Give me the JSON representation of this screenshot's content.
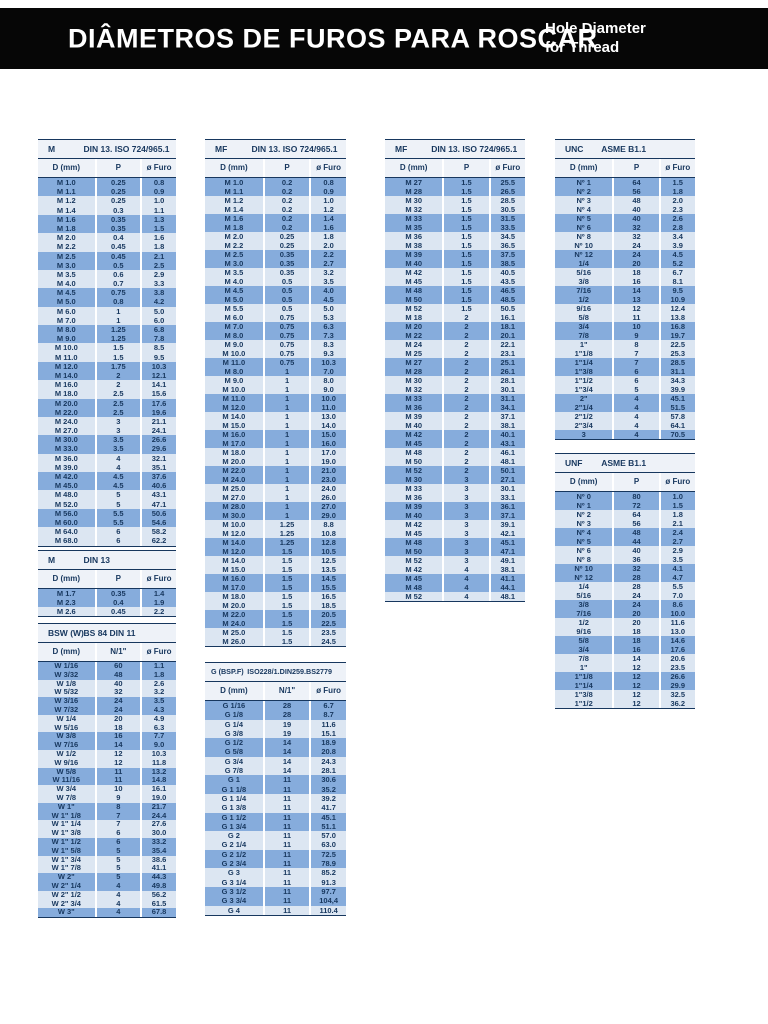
{
  "header": {
    "title": "DIÂMETROS DE FUROS PARA ROSCAR",
    "subtitle_line1": "Hole Diameter",
    "subtitle_line2": "for Thread"
  },
  "colors": {
    "banner_bg": "#060606",
    "banner_text": "#ffffff",
    "text_navy": "#17375e",
    "band_medium": "#86acdc",
    "band_light": "#dce6f2",
    "header_bg": "#eef2f8"
  },
  "tables": [
    {
      "id": "m-coarse",
      "title_left": "M",
      "title_right": "DIN 13. ISO 724/965.1",
      "columns": [
        "D (mm)",
        "P",
        "ø Furo"
      ],
      "rows": [
        [
          "M 1.0",
          "0.25",
          "0.8"
        ],
        [
          "M 1.1",
          "0.25",
          "0.9"
        ],
        [
          "M 1.2",
          "0.25",
          "1.0"
        ],
        [
          "M 1.4",
          "0.3",
          "1.1"
        ],
        [
          "M 1.6",
          "0.35",
          "1.3"
        ],
        [
          "M 1.8",
          "0.35",
          "1.5"
        ],
        [
          "M 2.0",
          "0.4",
          "1.6"
        ],
        [
          "M 2.2",
          "0.45",
          "1.8"
        ],
        [
          "M 2.5",
          "0.45",
          "2.1"
        ],
        [
          "M 3.0",
          "0.5",
          "2.5"
        ],
        [
          "M 3.5",
          "0.6",
          "2.9"
        ],
        [
          "M 4.0",
          "0.7",
          "3.3"
        ],
        [
          "M 4.5",
          "0.75",
          "3.8"
        ],
        [
          "M 5.0",
          "0.8",
          "4.2"
        ],
        [
          "M 6.0",
          "1",
          "5.0"
        ],
        [
          "M 7.0",
          "1",
          "6.0"
        ],
        [
          "M 8.0",
          "1.25",
          "6.8"
        ],
        [
          "M 9.0",
          "1.25",
          "7.8"
        ],
        [
          "M 10.0",
          "1.5",
          "8.5"
        ],
        [
          "M 11.0",
          "1.5",
          "9.5"
        ],
        [
          "M 12.0",
          "1.75",
          "10.3"
        ],
        [
          "M 14.0",
          "2",
          "12.1"
        ],
        [
          "M 16.0",
          "2",
          "14.1"
        ],
        [
          "M 18.0",
          "2.5",
          "15.6"
        ],
        [
          "M 20.0",
          "2.5",
          "17.6"
        ],
        [
          "M 22.0",
          "2.5",
          "19.6"
        ],
        [
          "M 24.0",
          "3",
          "21.1"
        ],
        [
          "M 27.0",
          "3",
          "24.1"
        ],
        [
          "M 30.0",
          "3.5",
          "26.6"
        ],
        [
          "M 33.0",
          "3.5",
          "29.6"
        ],
        [
          "M 36.0",
          "4",
          "32.1"
        ],
        [
          "M 39.0",
          "4",
          "35.1"
        ],
        [
          "M 42.0",
          "4.5",
          "37.6"
        ],
        [
          "M 45.0",
          "4.5",
          "40.6"
        ],
        [
          "M 48.0",
          "5",
          "43.1"
        ],
        [
          "M 52.0",
          "5",
          "47.1"
        ],
        [
          "M 56.0",
          "5.5",
          "50.6"
        ],
        [
          "M 60.0",
          "5.5",
          "54.6"
        ],
        [
          "M 64.0",
          "6",
          "58.2"
        ],
        [
          "M 68.0",
          "6",
          "62.2"
        ]
      ]
    },
    {
      "id": "m-din13",
      "title_left": "M",
      "title_right": "DIN 13",
      "columns": [
        "D (mm)",
        "P",
        "ø Furo"
      ],
      "rows": [
        [
          "M 1.7",
          "0.35",
          "1.4"
        ],
        [
          "M 2.3",
          "0.4",
          "1.9"
        ],
        [
          "M 2.6",
          "0.45",
          "2.2"
        ]
      ]
    },
    {
      "id": "bsw",
      "title_left": "BSW (W)",
      "title_right": "BS 84 DIN 11",
      "columns": [
        "D (mm)",
        "N/1\"",
        "ø Furo"
      ],
      "rows": [
        [
          "W 1/16",
          "60",
          "1.1"
        ],
        [
          "W 3/32",
          "48",
          "1.8"
        ],
        [
          "W 1/8",
          "40",
          "2.6"
        ],
        [
          "W 5/32",
          "32",
          "3.2"
        ],
        [
          "W 3/16",
          "24",
          "3.5"
        ],
        [
          "W 7/32",
          "24",
          "4.3"
        ],
        [
          "W 1/4",
          "20",
          "4.9"
        ],
        [
          "W 5/16",
          "18",
          "6.3"
        ],
        [
          "W 3/8",
          "16",
          "7.7"
        ],
        [
          "W 7/16",
          "14",
          "9.0"
        ],
        [
          "W 1/2",
          "12",
          "10.3"
        ],
        [
          "W 9/16",
          "12",
          "11.8"
        ],
        [
          "W 5/8",
          "11",
          "13.2"
        ],
        [
          "W 11/16",
          "11",
          "14.8"
        ],
        [
          "W 3/4",
          "10",
          "16.1"
        ],
        [
          "W 7/8",
          "9",
          "19.0"
        ],
        [
          "W 1\"",
          "8",
          "21.7"
        ],
        [
          "W 1\" 1/8",
          "7",
          "24.4"
        ],
        [
          "W 1\" 1/4",
          "7",
          "27.6"
        ],
        [
          "W 1\" 3/8",
          "6",
          "30.0"
        ],
        [
          "W 1\" 1/2",
          "6",
          "33.2"
        ],
        [
          "W 1\" 5/8",
          "5",
          "35.4"
        ],
        [
          "W 1\" 3/4",
          "5",
          "38.6"
        ],
        [
          "W 1\" 7/8",
          "5",
          "41.1"
        ],
        [
          "W 2\"",
          "5",
          "44.3"
        ],
        [
          "W 2\" 1/4",
          "4",
          "49.8"
        ],
        [
          "W 2\" 1/2",
          "4",
          "56.2"
        ],
        [
          "W 2\" 3/4",
          "4",
          "61.5"
        ],
        [
          "W 3\"",
          "4",
          "67.8"
        ]
      ]
    },
    {
      "id": "mf-fine-small",
      "title_left": "MF",
      "title_right": "DIN 13. ISO 724/965.1",
      "columns": [
        "D (mm)",
        "P",
        "ø Furo"
      ],
      "rows": [
        [
          "M 1.0",
          "0.2",
          "0.8"
        ],
        [
          "M 1.1",
          "0.2",
          "0.9"
        ],
        [
          "M 1.2",
          "0.2",
          "1.0"
        ],
        [
          "M 1.4",
          "0.2",
          "1.2"
        ],
        [
          "M 1.6",
          "0.2",
          "1.4"
        ],
        [
          "M 1.8",
          "0.2",
          "1.6"
        ],
        [
          "M 2.0",
          "0.25",
          "1.8"
        ],
        [
          "M 2.2",
          "0.25",
          "2.0"
        ],
        [
          "M 2.5",
          "0.35",
          "2.2"
        ],
        [
          "M 3.0",
          "0.35",
          "2.7"
        ],
        [
          "M 3.5",
          "0.35",
          "3.2"
        ],
        [
          "M 4.0",
          "0.5",
          "3.5"
        ],
        [
          "M 4.5",
          "0.5",
          "4.0"
        ],
        [
          "M 5.0",
          "0.5",
          "4.5"
        ],
        [
          "M 5.5",
          "0.5",
          "5.0"
        ],
        [
          "M 6.0",
          "0.75",
          "5.3"
        ],
        [
          "M 7.0",
          "0.75",
          "6.3"
        ],
        [
          "M 8.0",
          "0.75",
          "7.3"
        ],
        [
          "M 9.0",
          "0.75",
          "8.3"
        ],
        [
          "M 10.0",
          "0.75",
          "9.3"
        ],
        [
          "M 11.0",
          "0.75",
          "10.3"
        ],
        [
          "M 8.0",
          "1",
          "7.0"
        ],
        [
          "M 9.0",
          "1",
          "8.0"
        ],
        [
          "M 10.0",
          "1",
          "9.0"
        ],
        [
          "M 11.0",
          "1",
          "10.0"
        ],
        [
          "M 12.0",
          "1",
          "11.0"
        ],
        [
          "M 14.0",
          "1",
          "13.0"
        ],
        [
          "M 15.0",
          "1",
          "14.0"
        ],
        [
          "M 16.0",
          "1",
          "15.0"
        ],
        [
          "M 17.0",
          "1",
          "16.0"
        ],
        [
          "M 18.0",
          "1",
          "17.0"
        ],
        [
          "M 20.0",
          "1",
          "19.0"
        ],
        [
          "M 22.0",
          "1",
          "21.0"
        ],
        [
          "M 24.0",
          "1",
          "23.0"
        ],
        [
          "M 25.0",
          "1",
          "24.0"
        ],
        [
          "M 27.0",
          "1",
          "26.0"
        ],
        [
          "M 28.0",
          "1",
          "27.0"
        ],
        [
          "M 30.0",
          "1",
          "29.0"
        ],
        [
          "M 10.0",
          "1.25",
          "8.8"
        ],
        [
          "M 12.0",
          "1.25",
          "10.8"
        ],
        [
          "M 14.0",
          "1.25",
          "12.8"
        ],
        [
          "M 12.0",
          "1.5",
          "10.5"
        ],
        [
          "M 14.0",
          "1.5",
          "12.5"
        ],
        [
          "M 15.0",
          "1.5",
          "13.5"
        ],
        [
          "M 16.0",
          "1.5",
          "14.5"
        ],
        [
          "M 17.0",
          "1.5",
          "15.5"
        ],
        [
          "M 18.0",
          "1.5",
          "16.5"
        ],
        [
          "M 20.0",
          "1.5",
          "18.5"
        ],
        [
          "M 22.0",
          "1.5",
          "20.5"
        ],
        [
          "M 24.0",
          "1.5",
          "22.5"
        ],
        [
          "M 25.0",
          "1.5",
          "23.5"
        ],
        [
          "M 26.0",
          "1.5",
          "24.5"
        ]
      ]
    },
    {
      "id": "g-bspf",
      "title_left": "G (BSP.F)",
      "title_right": "ISO228/1.DIN259.BS2779",
      "columns": [
        "D (mm)",
        "N/1\"",
        "ø Furo"
      ],
      "rows": [
        [
          "G 1/16",
          "28",
          "6.7"
        ],
        [
          "G 1/8",
          "28",
          "8.7"
        ],
        [
          "G 1/4",
          "19",
          "11.6"
        ],
        [
          "G 3/8",
          "19",
          "15.1"
        ],
        [
          "G 1/2",
          "14",
          "18.9"
        ],
        [
          "G 5/8",
          "14",
          "20.8"
        ],
        [
          "G 3/4",
          "14",
          "24.3"
        ],
        [
          "G 7/8",
          "14",
          "28.1"
        ],
        [
          "G 1",
          "11",
          "30.6"
        ],
        [
          "G 1 1/8",
          "11",
          "35.2"
        ],
        [
          "G 1 1/4",
          "11",
          "39.2"
        ],
        [
          "G 1 3/8",
          "11",
          "41.7"
        ],
        [
          "G 1 1/2",
          "11",
          "45.1"
        ],
        [
          "G 1 3/4",
          "11",
          "51.1"
        ],
        [
          "G 2",
          "11",
          "57.0"
        ],
        [
          "G 2 1/4",
          "11",
          "63.0"
        ],
        [
          "G 2 1/2",
          "11",
          "72.5"
        ],
        [
          "G 2 3/4",
          "11",
          "78.9"
        ],
        [
          "G 3",
          "11",
          "85.2"
        ],
        [
          "G 3 1/4",
          "11",
          "91.3"
        ],
        [
          "G 3 1/2",
          "11",
          "97.7"
        ],
        [
          "G 3 3/4",
          "11",
          "104,4"
        ],
        [
          "G 4",
          "11",
          "110.4"
        ]
      ]
    },
    {
      "id": "mf-fine-large",
      "title_left": "MF",
      "title_right": "DIN 13. ISO 724/965.1",
      "columns": [
        "D (mm)",
        "P",
        "ø Furo"
      ],
      "rows": [
        [
          "M 27",
          "1.5",
          "25.5"
        ],
        [
          "M 28",
          "1.5",
          "26.5"
        ],
        [
          "M 30",
          "1.5",
          "28.5"
        ],
        [
          "M 32",
          "1.5",
          "30.5"
        ],
        [
          "M 33",
          "1.5",
          "31.5"
        ],
        [
          "M 35",
          "1.5",
          "33.5"
        ],
        [
          "M 36",
          "1.5",
          "34.5"
        ],
        [
          "M 38",
          "1.5",
          "36.5"
        ],
        [
          "M 39",
          "1.5",
          "37.5"
        ],
        [
          "M 40",
          "1.5",
          "38.5"
        ],
        [
          "M 42",
          "1.5",
          "40.5"
        ],
        [
          "M 45",
          "1.5",
          "43.5"
        ],
        [
          "M 48",
          "1.5",
          "46.5"
        ],
        [
          "M 50",
          "1.5",
          "48.5"
        ],
        [
          "M 52",
          "1.5",
          "50.5"
        ],
        [
          "M 18",
          "2",
          "16.1"
        ],
        [
          "M 20",
          "2",
          "18.1"
        ],
        [
          "M 22",
          "2",
          "20.1"
        ],
        [
          "M 24",
          "2",
          "22.1"
        ],
        [
          "M 25",
          "2",
          "23.1"
        ],
        [
          "M 27",
          "2",
          "25.1"
        ],
        [
          "M 28",
          "2",
          "26.1"
        ],
        [
          "M 30",
          "2",
          "28.1"
        ],
        [
          "M 32",
          "2",
          "30.1"
        ],
        [
          "M 33",
          "2",
          "31.1"
        ],
        [
          "M 36",
          "2",
          "34.1"
        ],
        [
          "M 39",
          "2",
          "37.1"
        ],
        [
          "M 40",
          "2",
          "38.1"
        ],
        [
          "M 42",
          "2",
          "40.1"
        ],
        [
          "M 45",
          "2",
          "43.1"
        ],
        [
          "M 48",
          "2",
          "46.1"
        ],
        [
          "M 50",
          "2",
          "48.1"
        ],
        [
          "M 52",
          "2",
          "50.1"
        ],
        [
          "M 30",
          "3",
          "27.1"
        ],
        [
          "M 33",
          "3",
          "30.1"
        ],
        [
          "M 36",
          "3",
          "33.1"
        ],
        [
          "M 39",
          "3",
          "36.1"
        ],
        [
          "M 40",
          "3",
          "37.1"
        ],
        [
          "M 42",
          "3",
          "39.1"
        ],
        [
          "M 45",
          "3",
          "42.1"
        ],
        [
          "M 48",
          "3",
          "45.1"
        ],
        [
          "M 50",
          "3",
          "47.1"
        ],
        [
          "M 52",
          "3",
          "49.1"
        ],
        [
          "M 42",
          "4",
          "38.1"
        ],
        [
          "M 45",
          "4",
          "41.1"
        ],
        [
          "M 48",
          "4",
          "44.1"
        ],
        [
          "M 52",
          "4",
          "48.1"
        ]
      ]
    },
    {
      "id": "unc",
      "title_left": "UNC",
      "title_right": "ASME B1.1",
      "columns": [
        "D (mm)",
        "P",
        "ø Furo"
      ],
      "rows": [
        [
          "Nº 1",
          "64",
          "1.5"
        ],
        [
          "Nº 2",
          "56",
          "1.8"
        ],
        [
          "Nº 3",
          "48",
          "2.0"
        ],
        [
          "Nº 4",
          "40",
          "2.3"
        ],
        [
          "Nº 5",
          "40",
          "2.6"
        ],
        [
          "Nº 6",
          "32",
          "2.8"
        ],
        [
          "Nº 8",
          "32",
          "3.4"
        ],
        [
          "Nº 10",
          "24",
          "3.9"
        ],
        [
          "Nº 12",
          "24",
          "4.5"
        ],
        [
          "1/4",
          "20",
          "5.2"
        ],
        [
          "5/16",
          "18",
          "6.7"
        ],
        [
          "3/8",
          "16",
          "8.1"
        ],
        [
          "7/16",
          "14",
          "9.5"
        ],
        [
          "1/2",
          "13",
          "10.9"
        ],
        [
          "9/16",
          "12",
          "12.4"
        ],
        [
          "5/8",
          "11",
          "13.8"
        ],
        [
          "3/4",
          "10",
          "16.8"
        ],
        [
          "7/8",
          "9",
          "19.7"
        ],
        [
          "1\"",
          "8",
          "22.5"
        ],
        [
          "1\"1/8",
          "7",
          "25.3"
        ],
        [
          "1\"1/4",
          "7",
          "28.5"
        ],
        [
          "1\"3/8",
          "6",
          "31.1"
        ],
        [
          "1\"1/2",
          "6",
          "34.3"
        ],
        [
          "1\"3/4",
          "5",
          "39.9"
        ],
        [
          "2\"",
          "4",
          "45.1"
        ],
        [
          "2\"1/4",
          "4",
          "51.5"
        ],
        [
          "2\"1/2",
          "4",
          "57.8"
        ],
        [
          "2\"3/4",
          "4",
          "64.1"
        ],
        [
          "3",
          "4",
          "70.5"
        ]
      ]
    },
    {
      "id": "unf",
      "title_left": "UNF",
      "title_right": "ASME B1.1",
      "columns": [
        "D (mm)",
        "P",
        "ø Furo"
      ],
      "rows": [
        [
          "Nº 0",
          "80",
          "1.0"
        ],
        [
          "Nº 1",
          "72",
          "1.5"
        ],
        [
          "Nº 2",
          "64",
          "1.8"
        ],
        [
          "Nº 3",
          "56",
          "2.1"
        ],
        [
          "Nº 4",
          "48",
          "2.4"
        ],
        [
          "Nº 5",
          "44",
          "2.7"
        ],
        [
          "Nº 6",
          "40",
          "2.9"
        ],
        [
          "Nº 8",
          "36",
          "3.5"
        ],
        [
          "Nº 10",
          "32",
          "4.1"
        ],
        [
          "Nº 12",
          "28",
          "4.7"
        ],
        [
          "1/4",
          "28",
          "5.5"
        ],
        [
          "5/16",
          "24",
          "7.0"
        ],
        [
          "3/8",
          "24",
          "8.6"
        ],
        [
          "7/16",
          "20",
          "10.0"
        ],
        [
          "1/2",
          "20",
          "11.6"
        ],
        [
          "9/16",
          "18",
          "13.0"
        ],
        [
          "5/8",
          "18",
          "14.6"
        ],
        [
          "3/4",
          "16",
          "17.6"
        ],
        [
          "7/8",
          "14",
          "20.6"
        ],
        [
          "1\"",
          "12",
          "23.5"
        ],
        [
          "1\"1/8",
          "12",
          "26.6"
        ],
        [
          "1\"1/4",
          "12",
          "29.9"
        ],
        [
          "1\"3/8",
          "12",
          "32.5"
        ],
        [
          "1\"1/2",
          "12",
          "36.2"
        ]
      ]
    }
  ]
}
